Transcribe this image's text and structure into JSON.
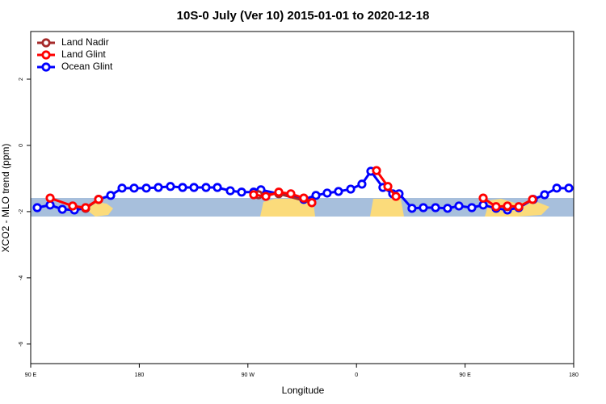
{
  "chart_data": {
    "type": "line",
    "title": "10S-0 July (Ver 10)   2015-01-01 to 2020-12-18",
    "xlabel": "Longitude",
    "ylabel": "XCO2 - MLO trend (ppm)",
    "xlim": [
      90,
      540
    ],
    "ylim": [
      -6.59,
      3.44
    ],
    "xticks": [
      {
        "value": 90,
        "label": "90 E"
      },
      180,
      {
        "value": 270,
        "label": "90 W"
      },
      {
        "value": 360,
        "label": "0"
      },
      {
        "value": 450,
        "label": "90 E"
      },
      {
        "value": 540,
        "label": "180"
      }
    ],
    "yticks": [
      2,
      0,
      -2,
      -4,
      -6
    ],
    "legend": "top-left",
    "series": [
      {
        "name": "Land Nadir",
        "color": "#a52a2a",
        "x": [
          124.8,
          135.5,
          146.3,
          250,
          278.8,
          295.6,
          323.0,
          400,
          485.1
        ],
        "values": [
          -1.83,
          -1.9,
          -1.63,
          null,
          -1.49,
          -1.46,
          -1.73,
          null,
          -1.85
        ]
      },
      {
        "name": "Land Glint",
        "color": "#ff0000",
        "x": [
          106.1,
          124.8,
          135.5,
          146.3,
          250,
          274.8,
          284.9,
          295.6,
          305.6,
          316.3,
          323.0,
          350,
          376.6,
          386.0,
          392.7,
          420,
          465.0,
          475.7,
          485.1,
          494.5,
          505.9
        ],
        "values": [
          -1.59,
          -1.83,
          -1.88,
          -1.63,
          null,
          -1.49,
          -1.54,
          -1.41,
          -1.46,
          -1.59,
          -1.73,
          null,
          -0.76,
          -1.24,
          -1.54,
          null,
          -1.59,
          -1.85,
          -1.83,
          -1.85,
          -1.63
        ]
      },
      {
        "name": "Ocean Glint",
        "color": "#0000ff",
        "x": [
          95.4,
          106.1,
          116.2,
          126.2,
          135.5,
          146.3,
          156.3,
          165.7,
          175.7,
          185.8,
          195.8,
          205.8,
          215.9,
          225.3,
          235.3,
          244.7,
          255.4,
          264.8,
          274.8,
          280.8,
          316.3,
          326.4,
          335.7,
          345.1,
          355.2,
          364.5,
          371.9,
          381.9,
          390.0,
          395.3,
          406.0,
          415.4,
          425.5,
          435.5,
          444.9,
          455.6,
          465.0,
          475.7,
          485.1,
          494.5,
          506.5,
          515.9,
          526.0,
          536.0
        ],
        "values": [
          -1.88,
          -1.8,
          -1.93,
          -1.95,
          -1.9,
          -1.63,
          -1.51,
          -1.29,
          -1.29,
          -1.29,
          -1.27,
          -1.24,
          -1.27,
          -1.27,
          -1.27,
          -1.27,
          -1.37,
          -1.41,
          -1.41,
          -1.34,
          -1.63,
          -1.51,
          -1.44,
          -1.39,
          -1.32,
          -1.17,
          -0.78,
          -1.27,
          -1.46,
          -1.46,
          -1.9,
          -1.88,
          -1.88,
          -1.9,
          -1.83,
          -1.88,
          -1.8,
          -1.9,
          -1.95,
          -1.88,
          -1.63,
          -1.49,
          -1.29,
          -1.29
        ]
      }
    ]
  }
}
